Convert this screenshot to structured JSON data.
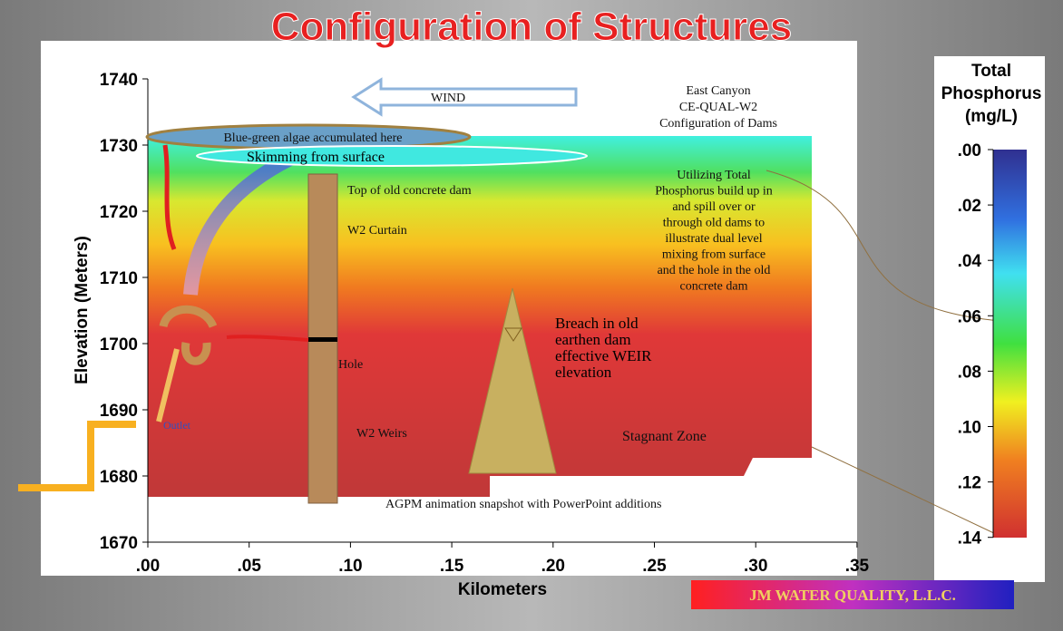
{
  "slide": {
    "title": "Configuration of Structures",
    "plot": {
      "y_axis_label": "Elevation (Meters)",
      "x_axis_label": "Kilometers",
      "x_ticks": [
        ".00",
        ".05",
        ".10",
        ".15",
        ".20",
        ".25",
        ".30",
        ".35"
      ],
      "y_ticks": [
        "1740",
        "1730",
        "1720",
        "1710",
        "1700",
        "1690",
        "1680",
        "1670"
      ],
      "annotations": {
        "wind": "WIND",
        "model": [
          "East Canyon",
          "CE-QUAL-W2",
          "Configuration of Dams"
        ],
        "algae": "Blue-green algae accumulated here",
        "skimming": "Skimming from surface",
        "old_dam_top": "Top of old concrete dam",
        "curtain": "W2 Curtain",
        "hole": "Hole",
        "weirs": "W2 Weirs",
        "outlet": "Outlet",
        "note": [
          "Utilizing  Total",
          "Phosphorus build up in",
          "and spill over or",
          "through old dams to",
          "illustrate dual level",
          "mixing from surface",
          "and the hole in the old",
          "concrete dam"
        ],
        "breach": [
          "Breach in old",
          "earthen dam",
          "effective WEIR",
          "elevation"
        ],
        "stagnant": "Stagnant Zone",
        "snapshot": "AGPM animation snapshot with PowerPoint additions"
      }
    },
    "colorbar": {
      "title": [
        "Total",
        "Phosphorus",
        "(mg/L)"
      ],
      "ticks": [
        ".00",
        ".02",
        ".04",
        ".06",
        ".08",
        ".10",
        ".12",
        ".14"
      ]
    },
    "logo": "JM WATER QUALITY, L.L.C."
  }
}
